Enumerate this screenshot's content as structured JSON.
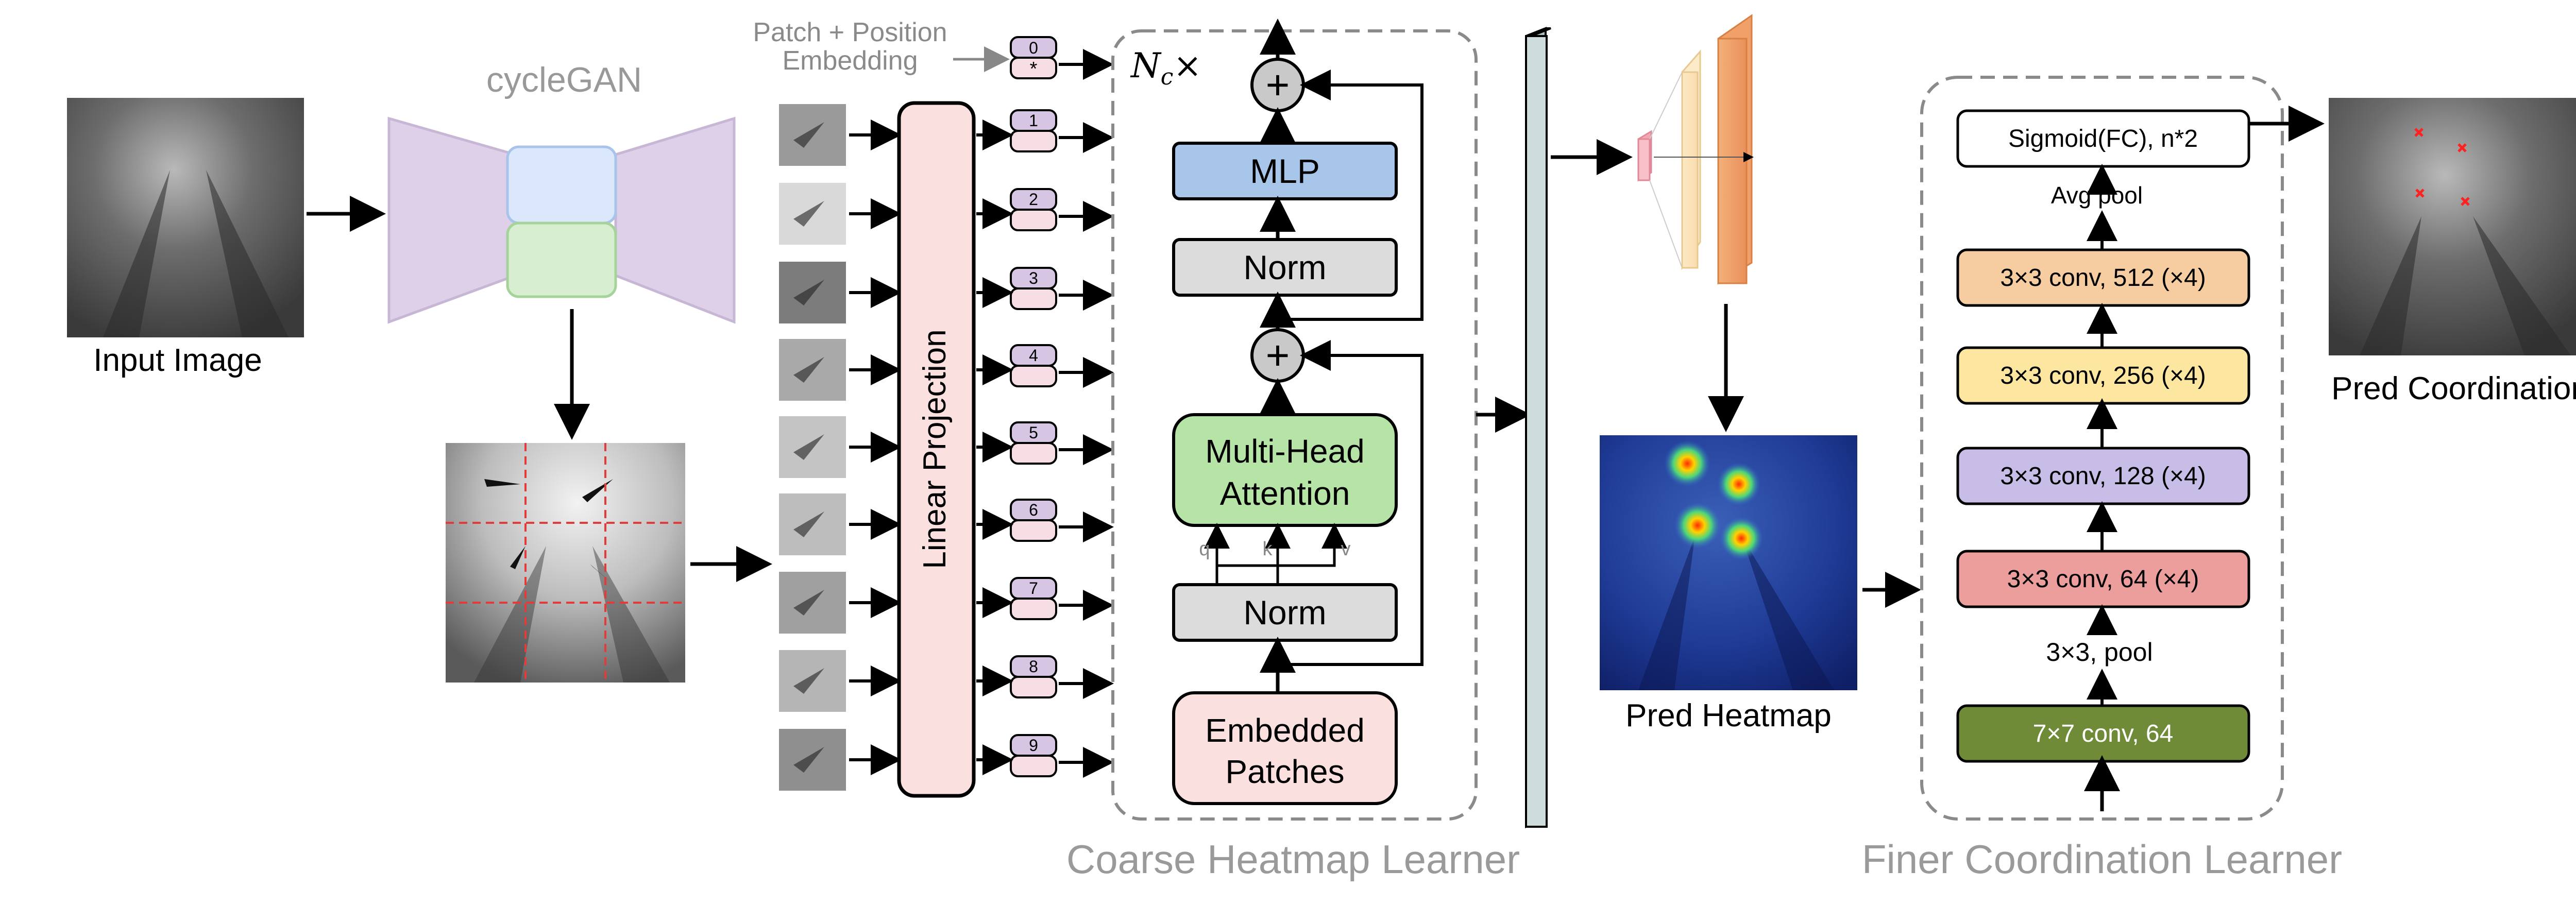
{
  "input": {
    "label": "Input Image"
  },
  "gan": {
    "label": "cycleGAN"
  },
  "patch_embedding": {
    "line1": "Patch + Position",
    "line2": "Embedding"
  },
  "tokens": {
    "cls_zero": "0",
    "cls_star": "*",
    "numbers": [
      "1",
      "2",
      "3",
      "4",
      "5",
      "6",
      "7",
      "8",
      "9"
    ]
  },
  "linear_projection": {
    "label": "Linear Projection"
  },
  "transformer": {
    "repeat_label": "N_c×",
    "repeat_base": "N",
    "repeat_sub": "c",
    "repeat_times": "×",
    "plus": "+",
    "mlp": "MLP",
    "norm_top": "Norm",
    "mha_line1": "Multi-Head",
    "mha_line2": "Attention",
    "q": "q",
    "k": "k",
    "v": "v",
    "norm_bottom": "Norm",
    "embedded_line1": "Embedded",
    "embedded_line2": "Patches",
    "caption": "Coarse Heatmap Learner"
  },
  "heatmap": {
    "label": "Pred Heatmap"
  },
  "resnet": {
    "blocks": [
      {
        "label": "Sigmoid(FC), n*2",
        "color": "#ffffff"
      },
      {
        "label": "3×3 conv, 512 (×4)",
        "color": "#f6cda0"
      },
      {
        "label": "3×3 conv, 256 (×4)",
        "color": "#fce6a0"
      },
      {
        "label": "3×3 conv, 128 (×4)",
        "color": "#c8bde6"
      },
      {
        "label": "3×3 conv, 64 (×4)",
        "color": "#ec9e9c"
      },
      {
        "label": "7×7 conv, 64",
        "color": "#6f8b38"
      }
    ],
    "avg_pool": "Avg pool",
    "pool_3x3": "3×3, pool",
    "caption": "Finer Coordination Learner"
  },
  "output": {
    "label": "Pred Coordination"
  },
  "colors": {
    "gan_gen": "#ddd0e8",
    "gan_top": "#dbe7fb",
    "gan_bottom": "#d7eed0",
    "mlp": "#a8c6ea",
    "norm": "#dcdcdc",
    "mha": "#b6e3a6",
    "embedded": "#fbe0e0",
    "token": "#f7dde4",
    "token_cls": "#d7c6e3",
    "dashed": "#8a8a8a",
    "caption": "#9a9a9a"
  }
}
